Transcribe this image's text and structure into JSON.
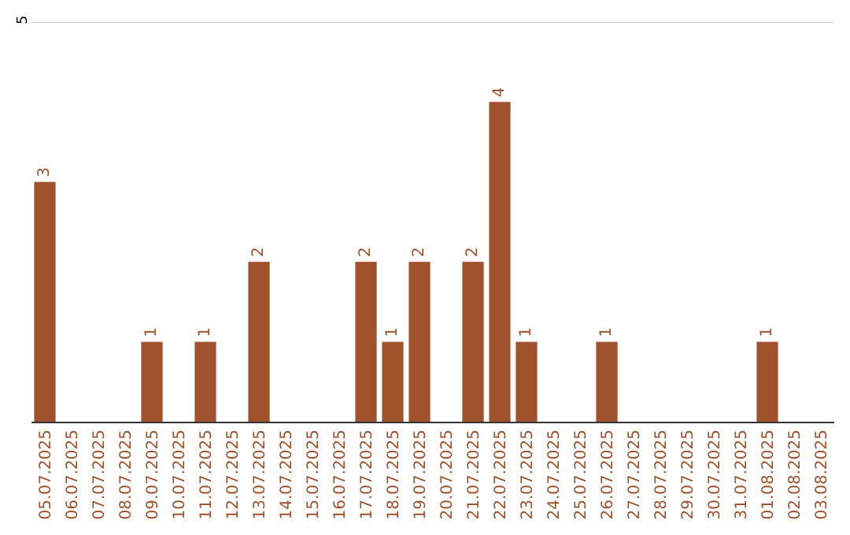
{
  "chart_data": {
    "type": "bar",
    "categories": [
      "05.07.2025",
      "06.07.2025",
      "07.07.2025",
      "08.07.2025",
      "09.07.2025",
      "10.07.2025",
      "11.07.2025",
      "12.07.2025",
      "13.07.2025",
      "14.07.2025",
      "15.07.2025",
      "16.07.2025",
      "17.07.2025",
      "18.07.2025",
      "19.07.2025",
      "20.07.2025",
      "21.07.2025",
      "22.07.2025",
      "23.07.2025",
      "24.07.2025",
      "25.07.2025",
      "26.07.2025",
      "27.07.2025",
      "28.07.2025",
      "29.07.2025",
      "30.07.2025",
      "31.07.2025",
      "01.08.2025",
      "02.08.2025",
      "03.08.2025"
    ],
    "values": [
      3,
      null,
      null,
      null,
      1,
      null,
      1,
      null,
      2,
      null,
      null,
      null,
      2,
      1,
      2,
      null,
      2,
      4,
      1,
      null,
      null,
      1,
      null,
      null,
      null,
      null,
      null,
      1,
      null,
      null
    ],
    "color": "#a0522d",
    "ylim": [
      0,
      5
    ],
    "yticks": [
      5
    ],
    "data_labels": true,
    "legend": false
  }
}
